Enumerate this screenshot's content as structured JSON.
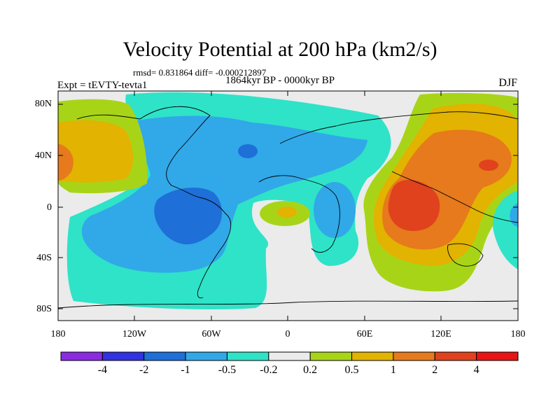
{
  "title": "Velocity Potential at 200 hPa (km2/s)",
  "stats": "rmsd= 0.831864 diff= -0.000212897",
  "period": "1864kyr BP - 0000kyr BP",
  "experiment": "Expt = tEVTY-tevta1",
  "season": "DJF",
  "map": {
    "lat_ticks": [
      "80N",
      "40N",
      "0",
      "40S",
      "80S"
    ],
    "lon_ticks": [
      "180",
      "120W",
      "60W",
      "0",
      "60E",
      "120E",
      "180"
    ]
  },
  "colorbar": {
    "colors": [
      "#8a2be2",
      "#3232e0",
      "#1e6fd8",
      "#31a8e8",
      "#2ee3c8",
      "#ebebeb",
      "#a8d418",
      "#e2b300",
      "#e67a1c",
      "#e0421e",
      "#e81414"
    ],
    "labels": [
      "-4",
      "-2",
      "-1",
      "-0.5",
      "-0.2",
      "0.2",
      "0.5",
      "1",
      "2",
      "4"
    ]
  }
}
